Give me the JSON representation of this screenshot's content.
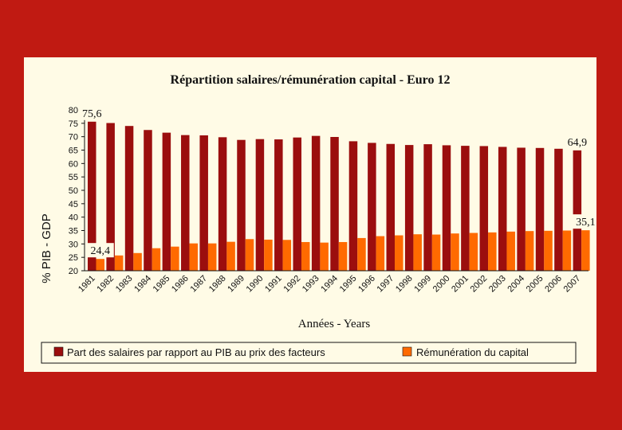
{
  "chart_data": {
    "type": "bar",
    "title": "Répartition salaires/rémunération capital - Euro 12",
    "xlabel": "Années - Years",
    "ylabel": "% PIB - GDP",
    "ylim": [
      20,
      80
    ],
    "yticks": [
      20,
      25,
      30,
      35,
      40,
      45,
      50,
      55,
      60,
      65,
      70,
      75,
      80
    ],
    "categories": [
      "1981",
      "1982",
      "1983",
      "1984",
      "1985",
      "1986",
      "1987",
      "1988",
      "1989",
      "1990",
      "1991",
      "1992",
      "1993",
      "1994",
      "1995",
      "1996",
      "1997",
      "1998",
      "1999",
      "2000",
      "2001",
      "2002",
      "2003",
      "2004",
      "2005",
      "2006",
      "2007"
    ],
    "series": [
      {
        "name": "Part des salaires par rapport au PIB au prix des facteurs",
        "color": "#9b0e0e",
        "values": [
          75.6,
          75.1,
          74.0,
          72.5,
          71.5,
          70.6,
          70.5,
          69.8,
          68.8,
          69.1,
          69.0,
          69.7,
          70.3,
          69.9,
          68.3,
          67.7,
          67.3,
          66.9,
          67.2,
          66.8,
          66.6,
          66.5,
          66.2,
          65.9,
          65.8,
          65.5,
          64.9
        ]
      },
      {
        "name": "Rémunération du capital",
        "color": "#ff6a00",
        "values": [
          24.4,
          25.7,
          26.6,
          28.4,
          29.0,
          30.2,
          30.2,
          30.8,
          31.8,
          31.6,
          31.5,
          30.7,
          30.5,
          30.7,
          32.2,
          32.9,
          33.2,
          33.6,
          33.5,
          33.9,
          34.1,
          34.3,
          34.6,
          34.8,
          34.9,
          35.0,
          35.1
        ]
      }
    ],
    "data_labels": [
      {
        "series": 0,
        "index": 0,
        "text": "75,6"
      },
      {
        "series": 1,
        "index": 0,
        "text": "24,4"
      },
      {
        "series": 0,
        "index": 26,
        "text": "64,9"
      },
      {
        "series": 1,
        "index": 26,
        "text": "35,1"
      }
    ],
    "grid": false,
    "legend": "bottom"
  }
}
